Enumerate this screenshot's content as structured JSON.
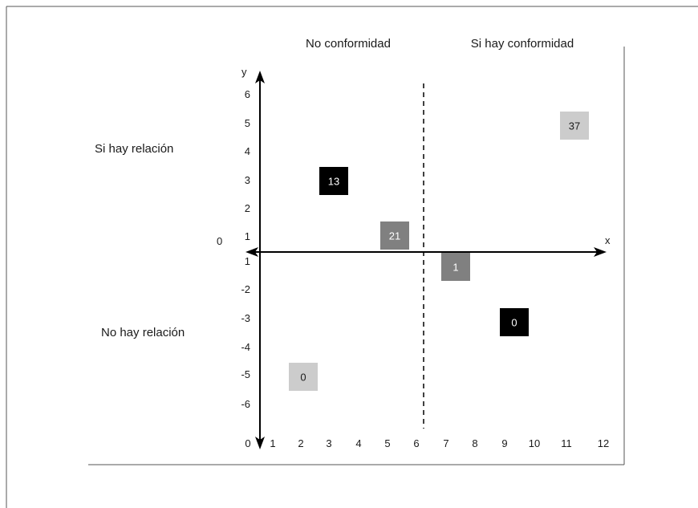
{
  "headers": {
    "left": "No conformidad",
    "right": "Si hay conformidad"
  },
  "row_labels": {
    "top": "Si hay relación",
    "bottom": "No hay relación"
  },
  "axes": {
    "x_label": "x",
    "y_label": "y",
    "origin_label": "0"
  },
  "x_ticks": [
    "0",
    "1",
    "2",
    "3",
    "4",
    "5",
    "6",
    "7",
    "8",
    "9",
    "10",
    "11",
    "12"
  ],
  "y_ticks": [
    "6",
    "5",
    "4",
    "3",
    "2",
    "1",
    "1",
    "-2",
    "-3",
    "-4",
    "-5",
    "-6"
  ],
  "colors": {
    "black": "#000000",
    "dark_gray": "#808080",
    "light_gray": "#cccccc"
  },
  "boxes": [
    {
      "value": "13",
      "shade": "black"
    },
    {
      "value": "21",
      "shade": "dark_gray"
    },
    {
      "value": "37",
      "shade": "light_gray"
    },
    {
      "value": "1",
      "shade": "dark_gray"
    },
    {
      "value": "0",
      "shade": "black"
    },
    {
      "value": "0",
      "shade": "light_gray"
    }
  ]
}
